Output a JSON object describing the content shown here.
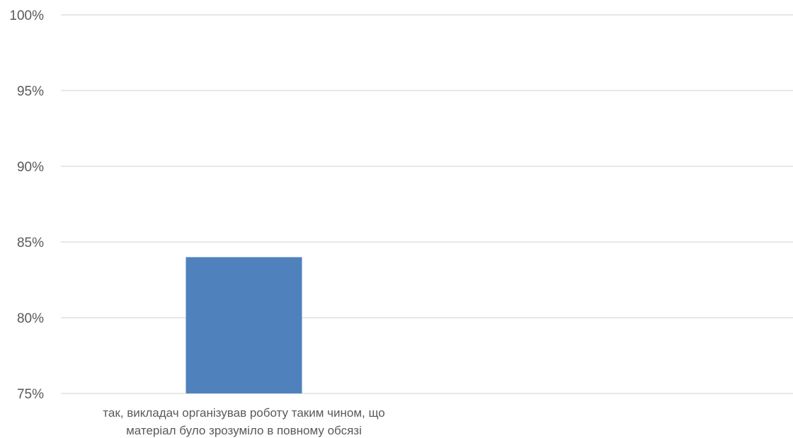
{
  "chart_data": {
    "type": "bar",
    "title": "",
    "xlabel": "",
    "ylabel": "",
    "categories": [
      [
        "так, викладач організував роботу таким чином, що",
        "матеріал було зрозуміло в повному обсязі"
      ]
    ],
    "series": [
      {
        "values": [
          0.84
        ]
      }
    ],
    "ylim": [
      0.75,
      1.0
    ],
    "yticks": [
      0.75,
      0.8,
      0.85,
      0.9,
      0.95,
      1.0
    ],
    "ytick_labels": [
      "75%",
      "80%",
      "85%",
      "90%",
      "95%",
      "100%"
    ],
    "grid": true,
    "legend": "none",
    "colors": {
      "bar": "#4f81bd",
      "grid": "#d9d9d9",
      "text": "#595959"
    }
  }
}
